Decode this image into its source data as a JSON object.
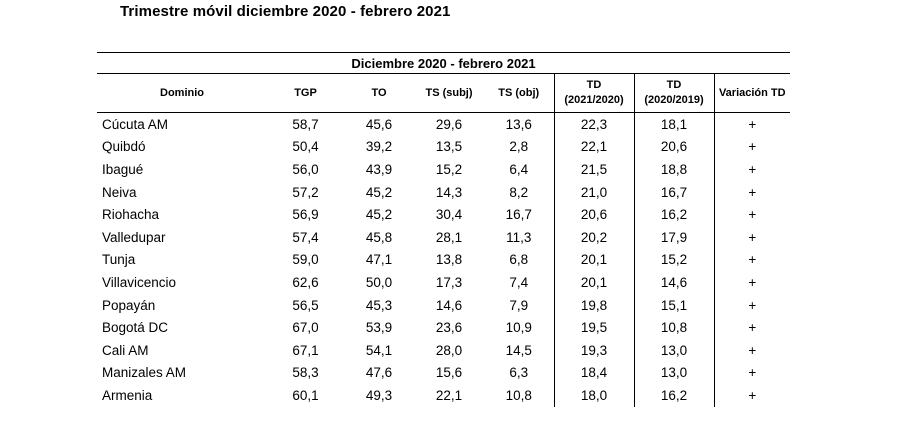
{
  "page_title": "Trimestre móvil diciembre 2020 - febrero 2021",
  "table": {
    "period_label": "Diciembre 2020 - febrero  2021",
    "headers": {
      "dominio": "Dominio",
      "tgp": "TGP",
      "to": "TO",
      "ts_subj": "TS (subj)",
      "ts_obj": "TS (obj)",
      "td_2021": "TD",
      "td_2021_sub": "(2021/2020)",
      "td_2020": "TD",
      "td_2020_sub": "(2020/2019)",
      "variacion": "Variación TD"
    },
    "rows": [
      {
        "dominio": "Cúcuta AM",
        "tgp": "58,7",
        "to": "45,6",
        "ts_subj": "29,6",
        "ts_obj": "13,6",
        "td_2021": "22,3",
        "td_2020": "18,1",
        "var": "+"
      },
      {
        "dominio": "Quibdó",
        "tgp": "50,4",
        "to": "39,2",
        "ts_subj": "13,5",
        "ts_obj": "2,8",
        "td_2021": "22,1",
        "td_2020": "20,6",
        "var": "+"
      },
      {
        "dominio": "Ibagué",
        "tgp": "56,0",
        "to": "43,9",
        "ts_subj": "15,2",
        "ts_obj": "6,4",
        "td_2021": "21,5",
        "td_2020": "18,8",
        "var": "+"
      },
      {
        "dominio": "Neiva",
        "tgp": "57,2",
        "to": "45,2",
        "ts_subj": "14,3",
        "ts_obj": "8,2",
        "td_2021": "21,0",
        "td_2020": "16,7",
        "var": "+"
      },
      {
        "dominio": "Riohacha",
        "tgp": "56,9",
        "to": "45,2",
        "ts_subj": "30,4",
        "ts_obj": "16,7",
        "td_2021": "20,6",
        "td_2020": "16,2",
        "var": "+"
      },
      {
        "dominio": "Valledupar",
        "tgp": "57,4",
        "to": "45,8",
        "ts_subj": "28,1",
        "ts_obj": "11,3",
        "td_2021": "20,2",
        "td_2020": "17,9",
        "var": "+"
      },
      {
        "dominio": "Tunja",
        "tgp": "59,0",
        "to": "47,1",
        "ts_subj": "13,8",
        "ts_obj": "6,8",
        "td_2021": "20,1",
        "td_2020": "15,2",
        "var": "+"
      },
      {
        "dominio": "Villavicencio",
        "tgp": "62,6",
        "to": "50,0",
        "ts_subj": "17,3",
        "ts_obj": "7,4",
        "td_2021": "20,1",
        "td_2020": "14,6",
        "var": "+"
      },
      {
        "dominio": "Popayán",
        "tgp": "56,5",
        "to": "45,3",
        "ts_subj": "14,6",
        "ts_obj": "7,9",
        "td_2021": "19,8",
        "td_2020": "15,1",
        "var": "+"
      },
      {
        "dominio": "Bogotá DC",
        "tgp": "67,0",
        "to": "53,9",
        "ts_subj": "23,6",
        "ts_obj": "10,9",
        "td_2021": "19,5",
        "td_2020": "10,8",
        "var": "+"
      },
      {
        "dominio": "Cali AM",
        "tgp": "67,1",
        "to": "54,1",
        "ts_subj": "28,0",
        "ts_obj": "14,5",
        "td_2021": "19,3",
        "td_2020": "13,0",
        "var": "+"
      },
      {
        "dominio": "Manizales AM",
        "tgp": "58,3",
        "to": "47,6",
        "ts_subj": "15,6",
        "ts_obj": "6,3",
        "td_2021": "18,4",
        "td_2020": "13,0",
        "var": "+"
      },
      {
        "dominio": "Armenia",
        "tgp": "60,1",
        "to": "49,3",
        "ts_subj": "22,1",
        "ts_obj": "10,8",
        "td_2021": "18,0",
        "td_2020": "16,2",
        "var": "+"
      }
    ]
  }
}
